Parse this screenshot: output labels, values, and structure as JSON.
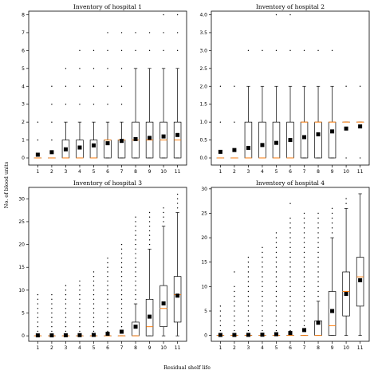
{
  "figure": {
    "xlabel": "Residual shelf life",
    "ylabel": "No. of blood units"
  },
  "colors": {
    "median": "#ff7f0e",
    "mean": "#000000",
    "box": "#000000",
    "flier": "#000000"
  },
  "chart_data": [
    {
      "type": "box",
      "title": "Inventory of hospital 1",
      "categories": [
        "1",
        "2",
        "3",
        "4",
        "5",
        "6",
        "7",
        "8",
        "9",
        "10",
        "11"
      ],
      "ylim": [
        -0.4,
        8.2
      ],
      "yticks": [
        0,
        1,
        2,
        3,
        4,
        5,
        6,
        7,
        8
      ],
      "boxes": [
        {
          "q1": 0,
          "median": 0,
          "q3": 0,
          "whislo": 0,
          "whishi": 0,
          "mean": 0.18,
          "fliers": [
            1,
            2
          ]
        },
        {
          "q1": 0,
          "median": 0,
          "q3": 0,
          "whislo": 0,
          "whishi": 0,
          "mean": 0.32,
          "fliers": [
            1,
            2,
            3,
            4
          ]
        },
        {
          "q1": 0,
          "median": 0,
          "q3": 1,
          "whislo": 0,
          "whishi": 2,
          "mean": 0.48,
          "fliers": [
            3,
            4,
            5
          ]
        },
        {
          "q1": 0,
          "median": 0,
          "q3": 1,
          "whislo": 0,
          "whishi": 2,
          "mean": 0.58,
          "fliers": [
            3,
            4,
            5,
            6
          ]
        },
        {
          "q1": 0,
          "median": 0,
          "q3": 1,
          "whislo": 0,
          "whishi": 2,
          "mean": 0.7,
          "fliers": [
            3,
            4,
            5,
            6
          ]
        },
        {
          "q1": 0,
          "median": 1,
          "q3": 1,
          "whislo": 0,
          "whishi": 2,
          "mean": 0.82,
          "fliers": [
            3,
            4,
            5,
            6,
            7
          ]
        },
        {
          "q1": 0,
          "median": 1,
          "q3": 1,
          "whislo": 0,
          "whishi": 2,
          "mean": 0.95,
          "fliers": [
            3,
            4,
            5,
            6,
            7
          ]
        },
        {
          "q1": 0,
          "median": 1,
          "q3": 2,
          "whislo": 0,
          "whishi": 5,
          "mean": 1.05,
          "fliers": [
            6,
            7
          ]
        },
        {
          "q1": 0,
          "median": 1,
          "q3": 2,
          "whislo": 0,
          "whishi": 5,
          "mean": 1.12,
          "fliers": [
            6,
            7
          ]
        },
        {
          "q1": 0,
          "median": 1,
          "q3": 2,
          "whislo": 0,
          "whishi": 5,
          "mean": 1.2,
          "fliers": [
            6,
            7,
            8
          ]
        },
        {
          "q1": 0,
          "median": 1,
          "q3": 2,
          "whislo": 0,
          "whishi": 5,
          "mean": 1.28,
          "fliers": [
            6,
            7,
            8
          ]
        }
      ]
    },
    {
      "type": "box",
      "title": "Inventory of hospital 2",
      "categories": [
        "1",
        "2",
        "3",
        "4",
        "5",
        "6",
        "7",
        "8",
        "9",
        "10",
        "11"
      ],
      "ylim": [
        -0.2,
        4.1
      ],
      "yticks": [
        0.0,
        0.5,
        1.0,
        1.5,
        2.0,
        2.5,
        3.0,
        3.5,
        4.0
      ],
      "boxes": [
        {
          "q1": 0,
          "median": 0,
          "q3": 0,
          "whislo": 0,
          "whishi": 0,
          "mean": 0.17,
          "fliers": [
            1,
            2
          ]
        },
        {
          "q1": 0,
          "median": 0,
          "q3": 0,
          "whislo": 0,
          "whishi": 0,
          "mean": 0.22,
          "fliers": [
            1,
            2
          ]
        },
        {
          "q1": 0,
          "median": 0,
          "q3": 1,
          "whislo": 0,
          "whishi": 2,
          "mean": 0.28,
          "fliers": [
            3
          ]
        },
        {
          "q1": 0,
          "median": 0,
          "q3": 1,
          "whislo": 0,
          "whishi": 2,
          "mean": 0.36,
          "fliers": [
            3
          ]
        },
        {
          "q1": 0,
          "median": 0,
          "q3": 1,
          "whislo": 0,
          "whishi": 2,
          "mean": 0.42,
          "fliers": [
            3,
            4
          ]
        },
        {
          "q1": 0,
          "median": 0,
          "q3": 1,
          "whislo": 0,
          "whishi": 2,
          "mean": 0.5,
          "fliers": [
            3,
            4
          ]
        },
        {
          "q1": 0,
          "median": 1,
          "q3": 1,
          "whislo": 0,
          "whishi": 2,
          "mean": 0.58,
          "fliers": [
            3
          ]
        },
        {
          "q1": 0,
          "median": 1,
          "q3": 1,
          "whislo": 0,
          "whishi": 2,
          "mean": 0.66,
          "fliers": [
            3
          ]
        },
        {
          "q1": 0,
          "median": 1,
          "q3": 1,
          "whislo": 0,
          "whishi": 2,
          "mean": 0.74,
          "fliers": [
            3
          ]
        },
        {
          "q1": 1,
          "median": 1,
          "q3": 1,
          "whislo": 1,
          "whishi": 1,
          "mean": 0.82,
          "fliers": [
            0,
            2
          ]
        },
        {
          "q1": 1,
          "median": 1,
          "q3": 1,
          "whislo": 1,
          "whishi": 1,
          "mean": 0.88,
          "fliers": [
            0,
            2
          ]
        }
      ]
    },
    {
      "type": "box",
      "title": "Inventory of hospital 3",
      "categories": [
        "1",
        "2",
        "3",
        "4",
        "5",
        "6",
        "7",
        "8",
        "9",
        "10",
        "11"
      ],
      "ylim": [
        -1.2,
        32.5
      ],
      "yticks": [
        0,
        5,
        10,
        15,
        20,
        25,
        30
      ],
      "boxes": [
        {
          "q1": 0,
          "median": 0,
          "q3": 0,
          "whislo": 0,
          "whishi": 0,
          "mean": 0.1,
          "fliers": [
            1,
            2,
            3,
            4,
            5,
            6,
            7,
            8,
            9
          ]
        },
        {
          "q1": 0,
          "median": 0,
          "q3": 0,
          "whislo": 0,
          "whishi": 0,
          "mean": 0.1,
          "fliers": [
            1,
            2,
            3,
            4,
            5,
            6,
            7,
            8,
            9
          ]
        },
        {
          "q1": 0,
          "median": 0,
          "q3": 0,
          "whislo": 0,
          "whishi": 0,
          "mean": 0.12,
          "fliers": [
            1,
            2,
            3,
            4,
            5,
            6,
            7,
            8,
            9,
            10,
            11
          ]
        },
        {
          "q1": 0,
          "median": 0,
          "q3": 0,
          "whislo": 0,
          "whishi": 0,
          "mean": 0.15,
          "fliers": [
            1,
            2,
            3,
            4,
            5,
            6,
            7,
            8,
            9,
            10,
            11,
            12
          ]
        },
        {
          "q1": 0,
          "median": 0,
          "q3": 0,
          "whislo": 0,
          "whishi": 0,
          "mean": 0.2,
          "fliers": [
            1,
            2,
            3,
            4,
            5,
            6,
            7,
            8,
            9,
            10,
            11,
            12,
            13,
            14
          ]
        },
        {
          "q1": 0,
          "median": 0,
          "q3": 0,
          "whislo": 0,
          "whishi": 0,
          "mean": 0.45,
          "fliers": [
            1,
            2,
            3,
            4,
            5,
            6,
            7,
            8,
            9,
            10,
            11,
            12,
            13,
            14,
            15,
            16,
            17
          ]
        },
        {
          "q1": 0,
          "median": 0,
          "q3": 0,
          "whislo": 0,
          "whishi": 0,
          "mean": 0.9,
          "fliers": [
            1,
            2,
            3,
            4,
            5,
            6,
            7,
            8,
            9,
            10,
            11,
            12,
            13,
            14,
            15,
            16,
            17,
            18,
            19,
            20
          ]
        },
        {
          "q1": 0,
          "median": 0,
          "q3": 3,
          "whislo": 0,
          "whishi": 7,
          "mean": 2.0,
          "fliers": [
            8,
            9,
            10,
            11,
            12,
            13,
            14,
            15,
            16,
            17,
            18,
            19,
            20,
            21,
            22,
            23,
            24,
            25,
            26
          ]
        },
        {
          "q1": 0,
          "median": 2,
          "q3": 8,
          "whislo": 0,
          "whishi": 19,
          "mean": 4.2,
          "fliers": [
            20,
            21,
            22,
            23,
            24,
            25,
            26,
            27
          ]
        },
        {
          "q1": 2,
          "median": 6,
          "q3": 11,
          "whislo": 0,
          "whishi": 24,
          "mean": 7.1,
          "fliers": [
            25,
            26,
            27,
            28
          ]
        },
        {
          "q1": 3,
          "median": 9,
          "q3": 13,
          "whislo": 0,
          "whishi": 27,
          "mean": 8.8,
          "fliers": [
            28,
            29,
            30,
            31
          ]
        }
      ]
    },
    {
      "type": "box",
      "title": "Inventory of hospital 4",
      "categories": [
        "1",
        "2",
        "3",
        "4",
        "5",
        "6",
        "7",
        "8",
        "9",
        "10",
        "11"
      ],
      "ylim": [
        -1.2,
        30.3
      ],
      "yticks": [
        0,
        5,
        10,
        15,
        20,
        25,
        30
      ],
      "boxes": [
        {
          "q1": 0,
          "median": 0,
          "q3": 0,
          "whislo": 0,
          "whishi": 0,
          "mean": 0.1,
          "fliers": [
            1,
            2,
            3,
            4,
            5,
            6
          ]
        },
        {
          "q1": 0,
          "median": 0,
          "q3": 0,
          "whislo": 0,
          "whishi": 0,
          "mean": 0.1,
          "fliers": [
            1,
            2,
            3,
            4,
            5,
            6,
            7,
            8,
            9,
            10,
            13
          ]
        },
        {
          "q1": 0,
          "median": 0,
          "q3": 0,
          "whislo": 0,
          "whishi": 0,
          "mean": 0.12,
          "fliers": [
            1,
            2,
            3,
            4,
            5,
            6,
            7,
            8,
            9,
            10,
            11,
            12,
            13,
            14,
            15,
            16
          ]
        },
        {
          "q1": 0,
          "median": 0,
          "q3": 0,
          "whislo": 0,
          "whishi": 0,
          "mean": 0.15,
          "fliers": [
            1,
            2,
            3,
            4,
            5,
            6,
            7,
            8,
            9,
            10,
            11,
            12,
            13,
            14,
            15,
            16,
            17,
            18
          ]
        },
        {
          "q1": 0,
          "median": 0,
          "q3": 0,
          "whislo": 0,
          "whishi": 0,
          "mean": 0.25,
          "fliers": [
            1,
            2,
            3,
            4,
            5,
            6,
            7,
            8,
            9,
            10,
            11,
            12,
            13,
            14,
            15,
            16,
            17,
            18,
            19,
            20,
            21
          ]
        },
        {
          "q1": 0,
          "median": 0,
          "q3": 0,
          "whislo": 0,
          "whishi": 0,
          "mean": 0.5,
          "fliers": [
            1,
            2,
            3,
            4,
            5,
            6,
            7,
            8,
            9,
            10,
            11,
            12,
            13,
            14,
            15,
            16,
            17,
            18,
            19,
            20,
            21,
            22,
            23,
            24,
            27
          ]
        },
        {
          "q1": 0,
          "median": 0,
          "q3": 0,
          "whislo": 0,
          "whishi": 0,
          "mean": 1.1,
          "fliers": [
            1,
            2,
            3,
            4,
            5,
            6,
            7,
            8,
            9,
            10,
            11,
            12,
            13,
            14,
            15,
            16,
            17,
            18,
            19,
            20,
            21,
            22,
            23,
            24,
            25
          ]
        },
        {
          "q1": 0,
          "median": 0,
          "q3": 3,
          "whislo": 0,
          "whishi": 7,
          "mean": 2.6,
          "fliers": [
            8,
            9,
            10,
            11,
            12,
            13,
            14,
            15,
            16,
            17,
            18,
            19,
            20,
            21,
            22,
            23,
            24,
            25
          ]
        },
        {
          "q1": 0,
          "median": 2,
          "q3": 9,
          "whislo": 0,
          "whishi": 20,
          "mean": 5.0,
          "fliers": [
            21,
            22,
            23,
            24,
            25,
            26
          ]
        },
        {
          "q1": 4,
          "median": 9,
          "q3": 13,
          "whislo": 0,
          "whishi": 26,
          "mean": 8.5,
          "fliers": [
            27,
            28
          ]
        },
        {
          "q1": 6,
          "median": 12,
          "q3": 16,
          "whislo": 0,
          "whishi": 29,
          "mean": 11.3,
          "fliers": []
        }
      ]
    }
  ]
}
